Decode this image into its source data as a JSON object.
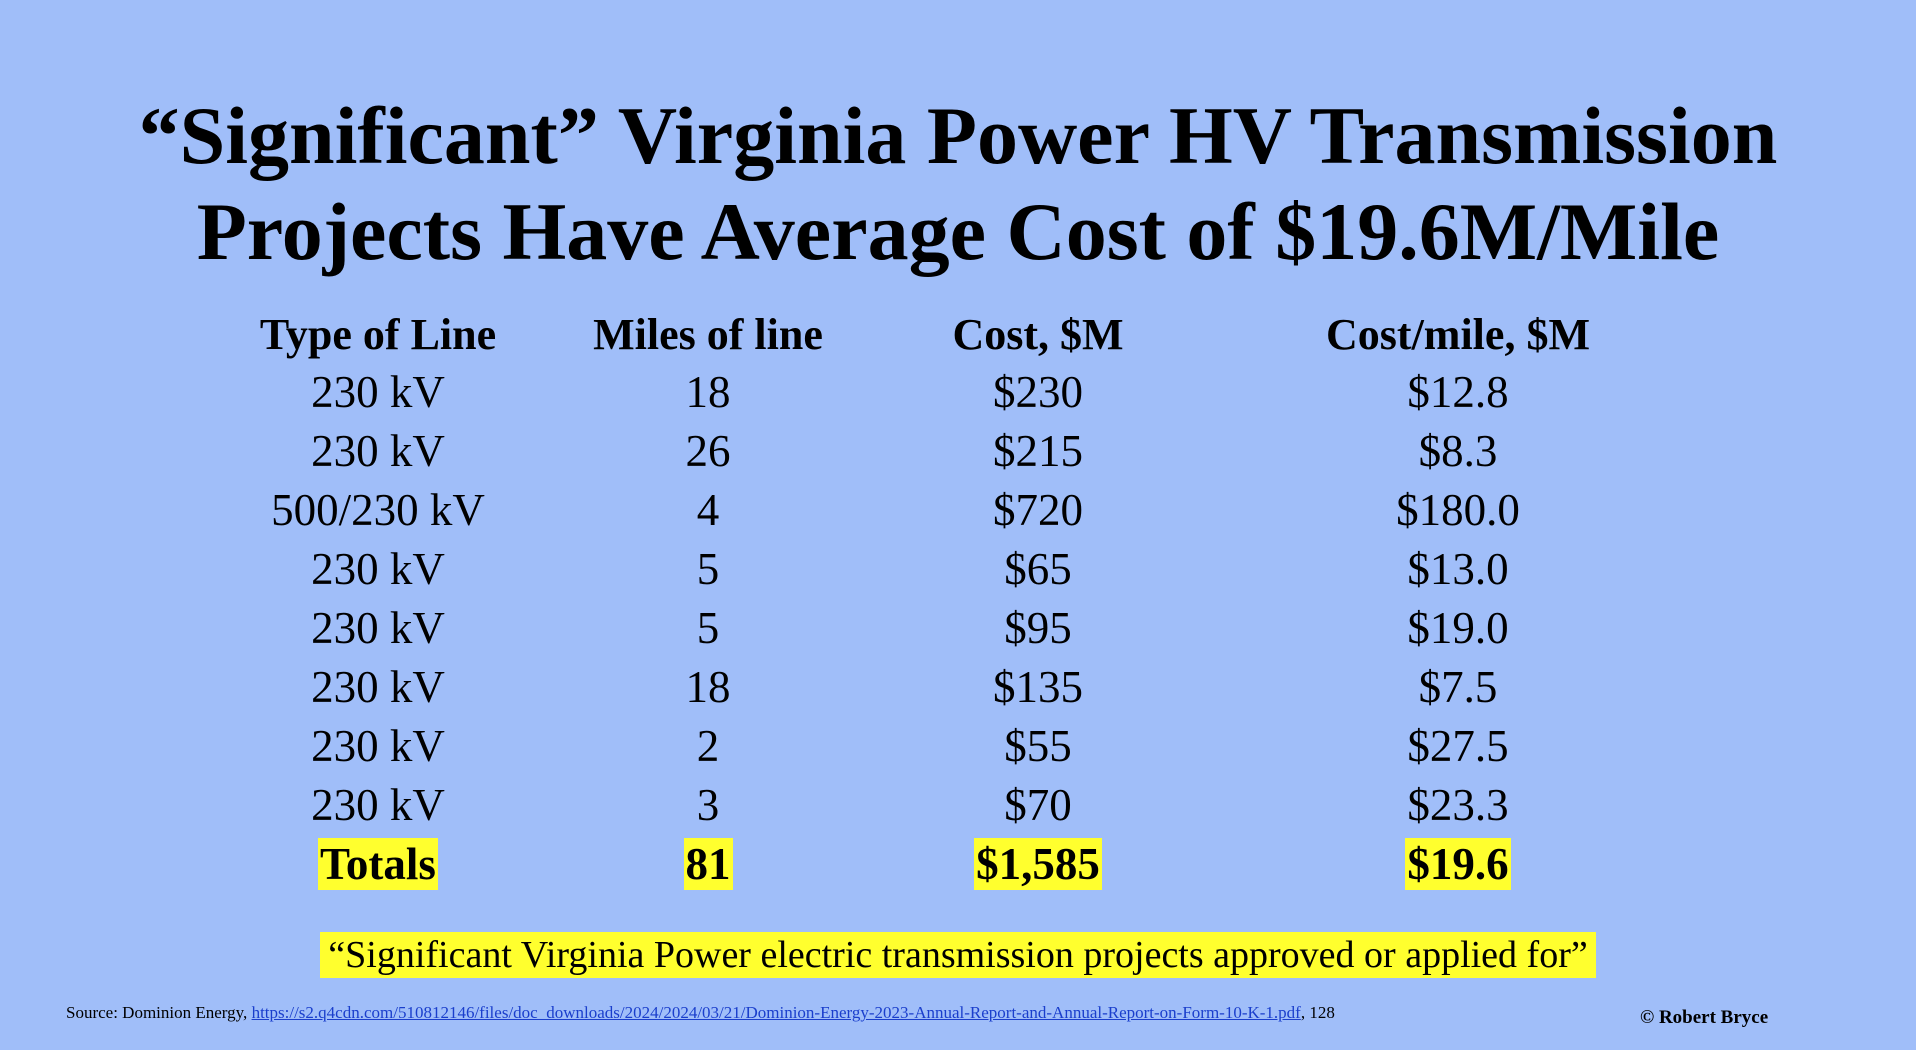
{
  "slide": {
    "title_line1": "“Significant” Virginia Power HV Transmission",
    "title_line2": "Projects Have Average Cost of $19.6M/Mile",
    "table": {
      "headers": [
        "Type of Line",
        "Miles of line",
        "Cost, $M",
        "Cost/mile, $M"
      ],
      "rows": [
        [
          "230 kV",
          "18",
          "$230",
          "$12.8"
        ],
        [
          "230 kV",
          "26",
          "$215",
          "$8.3"
        ],
        [
          "500/230 kV",
          "4",
          "$720",
          "$180.0"
        ],
        [
          "230 kV",
          "5",
          "$65",
          "$13.0"
        ],
        [
          "230 kV",
          "5",
          "$95",
          "$19.0"
        ],
        [
          "230 kV",
          "18",
          "$135",
          "$7.5"
        ],
        [
          "230 kV",
          "2",
          "$55",
          "$27.5"
        ],
        [
          "230 kV",
          "3",
          "$70",
          "$23.3"
        ]
      ],
      "totals": [
        "Totals",
        "81",
        "$1,585",
        "$19.6"
      ]
    },
    "quote": "“Significant Virginia Power electric transmission projects approved or applied for”",
    "source_prefix": "Source: Dominion Energy, ",
    "source_link": "https://s2.q4cdn.com/510812146/files/doc_downloads/2024/2024/03/21/Dominion-Energy-2023-Annual-Report-and-Annual-Report-on-Form-10-K-1.pdf",
    "source_suffix": ", 128",
    "credit": "© Robert Bryce",
    "highlight_color": "#ffff2e",
    "background_color": "#a0bef9"
  }
}
